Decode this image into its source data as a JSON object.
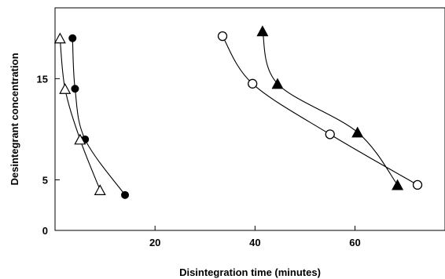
{
  "chart_data": {
    "type": "scatter",
    "xlabel": "Disintegration time (minutes)",
    "ylabel": "Desintegrant concentration",
    "xlim": [
      0,
      78
    ],
    "ylim": [
      0,
      22
    ],
    "xticks": [
      20,
      40,
      60
    ],
    "yticks": [
      0,
      5,
      15
    ],
    "grid": false,
    "series": [
      {
        "marker": "filled-circle",
        "color": "#000000",
        "x": [
          3.5,
          4.0,
          6.0,
          14.0
        ],
        "y": [
          19.0,
          14.0,
          9.0,
          3.5
        ]
      },
      {
        "marker": "open-triangle",
        "color": "#000000",
        "x": [
          1.0,
          2.0,
          5.0,
          9.0
        ],
        "y": [
          19.0,
          14.0,
          9.0,
          4.0
        ]
      },
      {
        "marker": "open-circle",
        "color": "#000000",
        "x": [
          33.5,
          39.5,
          55.0,
          72.5
        ],
        "y": [
          19.2,
          14.5,
          9.5,
          4.5
        ]
      },
      {
        "marker": "filled-triangle",
        "color": "#000000",
        "x": [
          41.5,
          44.5,
          60.5,
          68.5
        ],
        "y": [
          19.7,
          14.5,
          9.7,
          4.5
        ]
      }
    ]
  }
}
